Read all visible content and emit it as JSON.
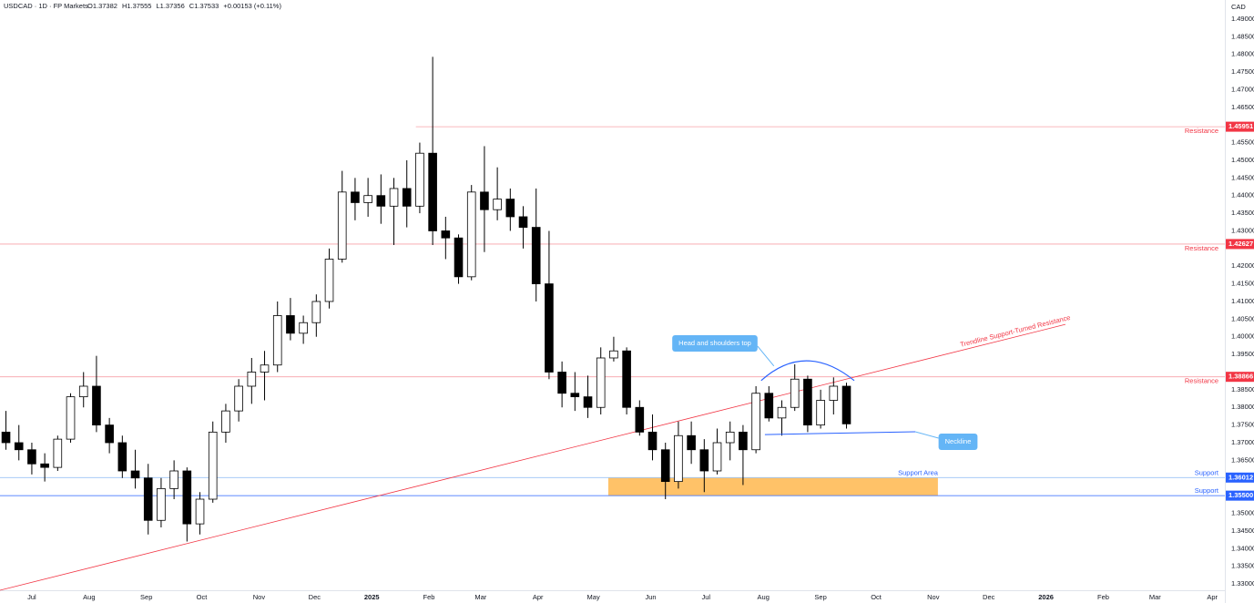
{
  "header": {
    "symbol": "USDCAD · 1D · FP Markets",
    "ohlc": [
      "O1.37382",
      "H1.37555",
      "L1.37356",
      "C1.37533",
      "+0.00153 (+0.11%)"
    ]
  },
  "chart_data": {
    "type": "candlestick",
    "currency": "CAD",
    "ylim": [
      1.3282,
      1.4954
    ],
    "xlim": [
      -0.46,
      94.26
    ],
    "yticks": [
      {
        "value": 1.49,
        "label": "1.49000"
      },
      {
        "value": 1.485,
        "label": "1.48500"
      },
      {
        "value": 1.48,
        "label": "1.48000"
      },
      {
        "value": 1.475,
        "label": "1.47500"
      },
      {
        "value": 1.47,
        "label": "1.47000"
      },
      {
        "value": 1.465,
        "label": "1.46500"
      },
      {
        "value": 1.46,
        "label": "1.46000"
      },
      {
        "value": 1.455,
        "label": "1.45500"
      },
      {
        "value": 1.45,
        "label": "1.45000"
      },
      {
        "value": 1.445,
        "label": "1.44500"
      },
      {
        "value": 1.44,
        "label": "1.44000"
      },
      {
        "value": 1.435,
        "label": "1.43500"
      },
      {
        "value": 1.43,
        "label": "1.43000"
      },
      {
        "value": 1.42,
        "label": "1.42000"
      },
      {
        "value": 1.415,
        "label": "1.41500"
      },
      {
        "value": 1.41,
        "label": "1.41000"
      },
      {
        "value": 1.405,
        "label": "1.40500"
      },
      {
        "value": 1.4,
        "label": "1.40000"
      },
      {
        "value": 1.395,
        "label": "1.39500"
      },
      {
        "value": 1.385,
        "label": "1.38500"
      },
      {
        "value": 1.38,
        "label": "1.38000"
      },
      {
        "value": 1.375,
        "label": "1.37500"
      },
      {
        "value": 1.37,
        "label": "1.37000"
      },
      {
        "value": 1.365,
        "label": "1.36500"
      },
      {
        "value": 1.35,
        "label": "1.35000"
      },
      {
        "value": 1.345,
        "label": "1.34500"
      },
      {
        "value": 1.34,
        "label": "1.34000"
      },
      {
        "value": 1.335,
        "label": "1.33500"
      },
      {
        "value": 1.33,
        "label": "1.33000"
      }
    ],
    "xticks": [
      {
        "value": 2,
        "label": "Jul"
      },
      {
        "value": 6.43,
        "label": "Aug"
      },
      {
        "value": 10.86,
        "label": "Sep"
      },
      {
        "value": 15.14,
        "label": "Oct"
      },
      {
        "value": 19.57,
        "label": "Nov"
      },
      {
        "value": 23.86,
        "label": "Dec"
      },
      {
        "value": 28.29,
        "label": "2025"
      },
      {
        "value": 32.71,
        "label": "Feb"
      },
      {
        "value": 36.71,
        "label": "Mar"
      },
      {
        "value": 41.14,
        "label": "Apr"
      },
      {
        "value": 45.43,
        "label": "May"
      },
      {
        "value": 49.86,
        "label": "Jun"
      },
      {
        "value": 54.14,
        "label": "Jul"
      },
      {
        "value": 58.57,
        "label": "Aug"
      },
      {
        "value": 63,
        "label": "Sep"
      },
      {
        "value": 67.29,
        "label": "Oct"
      },
      {
        "value": 71.71,
        "label": "Nov"
      },
      {
        "value": 76,
        "label": "Dec"
      },
      {
        "value": 80.43,
        "label": "2026"
      },
      {
        "value": 84.86,
        "label": "Feb"
      },
      {
        "value": 88.86,
        "label": "Mar"
      },
      {
        "value": 93.29,
        "label": "Apr"
      }
    ],
    "up_color": "#ffffff",
    "down_color": "#000000",
    "open": [
      1.373,
      1.37,
      1.368,
      1.364,
      1.363,
      1.371,
      1.383,
      1.386,
      1.375,
      1.37,
      1.362,
      1.36,
      1.348,
      1.357,
      1.362,
      1.347,
      1.354,
      1.373,
      1.379,
      1.386,
      1.39,
      1.392,
      1.406,
      1.401,
      1.404,
      1.41,
      1.422,
      1.441,
      1.438,
      1.44,
      1.437,
      1.442,
      1.437,
      1.452,
      1.43,
      1.428,
      1.417,
      1.441,
      1.436,
      1.439,
      1.434,
      1.431,
      1.415,
      1.39,
      1.384,
      1.383,
      1.38,
      1.394,
      1.396,
      1.38,
      1.373,
      1.368,
      1.359,
      1.372,
      1.368,
      1.362,
      1.37,
      1.373,
      1.368,
      1.384,
      1.377,
      1.38,
      1.388,
      1.375,
      1.382,
      1.386
    ],
    "high": [
      1.379,
      1.375,
      1.37,
      1.367,
      1.372,
      1.384,
      1.39,
      1.3946,
      1.377,
      1.372,
      1.368,
      1.364,
      1.36,
      1.365,
      1.363,
      1.356,
      1.376,
      1.381,
      1.388,
      1.394,
      1.396,
      1.41,
      1.411,
      1.406,
      1.412,
      1.425,
      1.447,
      1.445,
      1.445,
      1.446,
      1.445,
      1.45,
      1.455,
      1.4793,
      1.434,
      1.429,
      1.443,
      1.454,
      1.448,
      1.442,
      1.437,
      1.442,
      1.43,
      1.393,
      1.39,
      1.389,
      1.397,
      1.4,
      1.397,
      1.382,
      1.378,
      1.37,
      1.376,
      1.376,
      1.371,
      1.374,
      1.376,
      1.375,
      1.386,
      1.386,
      1.382,
      1.3922,
      1.389,
      1.385,
      1.3885,
      1.387
    ],
    "low": [
      1.368,
      1.365,
      1.361,
      1.359,
      1.362,
      1.37,
      1.38,
      1.373,
      1.367,
      1.36,
      1.357,
      1.344,
      1.346,
      1.354,
      1.342,
      1.344,
      1.353,
      1.37,
      1.376,
      1.381,
      1.382,
      1.39,
      1.399,
      1.398,
      1.4,
      1.408,
      1.421,
      1.433,
      1.434,
      1.432,
      1.426,
      1.431,
      1.435,
      1.426,
      1.422,
      1.415,
      1.416,
      1.424,
      1.433,
      1.43,
      1.425,
      1.41,
      1.388,
      1.38,
      1.379,
      1.377,
      1.378,
      1.393,
      1.378,
      1.372,
      1.365,
      1.354,
      1.357,
      1.364,
      1.356,
      1.361,
      1.365,
      1.358,
      1.367,
      1.376,
      1.372,
      1.379,
      1.373,
      1.374,
      1.378,
      1.374
    ],
    "close": [
      1.37,
      1.368,
      1.364,
      1.363,
      1.371,
      1.383,
      1.386,
      1.375,
      1.37,
      1.362,
      1.36,
      1.348,
      1.357,
      1.362,
      1.347,
      1.354,
      1.373,
      1.379,
      1.386,
      1.39,
      1.392,
      1.406,
      1.401,
      1.404,
      1.41,
      1.422,
      1.441,
      1.438,
      1.44,
      1.437,
      1.442,
      1.437,
      1.452,
      1.43,
      1.428,
      1.417,
      1.441,
      1.436,
      1.439,
      1.434,
      1.431,
      1.415,
      1.39,
      1.384,
      1.383,
      1.38,
      1.394,
      1.396,
      1.38,
      1.373,
      1.368,
      1.359,
      1.372,
      1.368,
      1.362,
      1.37,
      1.373,
      1.368,
      1.384,
      1.377,
      1.38,
      1.388,
      1.375,
      1.382,
      1.386,
      1.37533
    ],
    "levels": [
      {
        "label": "Resistance",
        "value": 1.45951,
        "value_label": "1.45951",
        "color": "#f23645",
        "line_color": "#f7a1a8",
        "x_start": 31.7
      },
      {
        "label": "Resistance",
        "value": 1.42627,
        "value_label": "1.42627",
        "color": "#f23645",
        "line_color": "#f7a1a8",
        "x_start": -0.46
      },
      {
        "label": "Resistance",
        "value": 1.38866,
        "value_label": "1.38866",
        "color": "#f23645",
        "line_color": "#f7a1a8",
        "x_start": -0.46
      },
      {
        "label": "Support",
        "value": 1.36012,
        "value_label": "1.36012",
        "color": "#2962ff",
        "line_color": "#9cc3f5",
        "x_start": -0.46
      },
      {
        "label": "Support",
        "value": 1.355,
        "value_label": "1.35500",
        "color": "#2962ff",
        "line_color": "#2962ff",
        "x_start": -0.46
      }
    ],
    "zone": {
      "label": "Support Area",
      "x": [
        46.58,
        72.07
      ],
      "y": [
        1.355,
        1.36012
      ],
      "color": "#ffb74d",
      "label_color": "#2962ff"
    },
    "trendline": {
      "label": "Trendline Support-Turned Resistance",
      "x": [
        -0.46,
        81.93
      ],
      "y": [
        1.3282,
        1.4035
      ],
      "color": "#f23645"
    },
    "neckline": {
      "label": "Neckline",
      "x": [
        58.69,
        70.32
      ],
      "y": [
        1.3723,
        1.3731
      ],
      "color": "#2962ff",
      "box_color": "#64b5f6"
    },
    "pattern": {
      "label": "Head and shoulders top",
      "x": [
        58.4,
        61.9,
        65.6
      ],
      "y": [
        1.3876,
        1.3932,
        1.3876
      ],
      "color": "#2962ff",
      "box_color": "#64b5f6"
    }
  }
}
